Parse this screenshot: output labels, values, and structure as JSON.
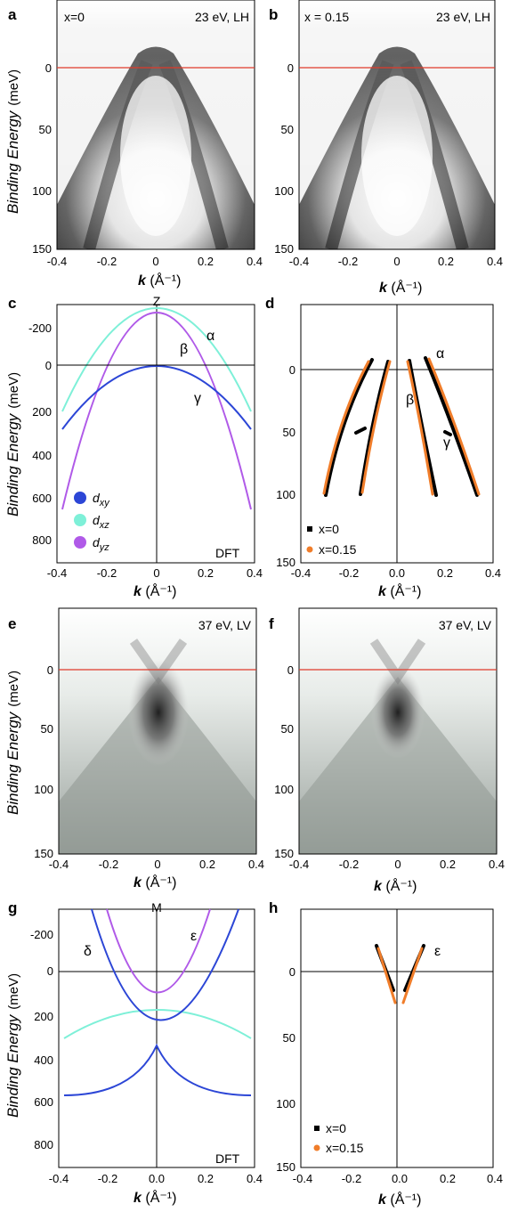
{
  "figure": {
    "y_axis_label_italic": "Binding Energy",
    "y_axis_unit": "(meV)",
    "x_axis_label_k": "k",
    "x_axis_unit": "(Å⁻¹)"
  },
  "panels": {
    "a": {
      "letter": "a",
      "left_note": "x=0",
      "right_note": "23 eV, LH"
    },
    "b": {
      "letter": "b",
      "left_note": "x = 0.15",
      "right_note": "23 eV, LH"
    },
    "c": {
      "letter": "c",
      "top_label": "Z",
      "corner_label": "DFT",
      "bands": {
        "alpha": "α",
        "beta": "β",
        "gamma": "γ"
      },
      "legend": [
        {
          "label": "d",
          "sub": "xy",
          "color": "#2c46d6"
        },
        {
          "label": "d",
          "sub": "xz",
          "color": "#7ef0d8"
        },
        {
          "label": "d",
          "sub": "yz",
          "color": "#b05ae8"
        }
      ]
    },
    "d": {
      "letter": "d",
      "bands": {
        "alpha": "α",
        "beta": "β",
        "gamma": "γ"
      },
      "legend": [
        {
          "label": "x=0",
          "color": "#000000"
        },
        {
          "label": "x=0.15",
          "color": "#f07d2a"
        }
      ]
    },
    "e": {
      "letter": "e",
      "right_note": "37 eV, LV"
    },
    "f": {
      "letter": "f",
      "right_note": "37 eV, LV"
    },
    "g": {
      "letter": "g",
      "top_label": "M",
      "corner_label": "DFT",
      "bands": {
        "delta": "δ",
        "epsilon": "ε"
      }
    },
    "h": {
      "letter": "h",
      "bands": {
        "epsilon": "ε"
      },
      "legend": [
        {
          "label": "x=0",
          "color": "#000000"
        },
        {
          "label": "x=0.15",
          "color": "#f07d2a"
        }
      ]
    }
  },
  "axes": {
    "arpes_x_ticks": [
      "-0.4",
      "-0.2",
      "0",
      "0.2",
      "0.4"
    ],
    "arpes_y_ticks": [
      "0",
      "50",
      "100",
      "150"
    ],
    "dft_y_ticks": [
      "-200",
      "0",
      "200",
      "400",
      "600",
      "800"
    ],
    "fit_x_ticks": [
      "-0.4",
      "-0.2",
      "0.0",
      "0.2",
      "0.4"
    ],
    "fit_y_ticks": [
      "0",
      "50",
      "100",
      "150"
    ]
  },
  "colors": {
    "fermi_line": "#e03a2a",
    "dxy": "#2c46d6",
    "dxz": "#7ef0d8",
    "dyz": "#b05ae8",
    "x0": "#000000",
    "x015": "#f07d2a"
  }
}
